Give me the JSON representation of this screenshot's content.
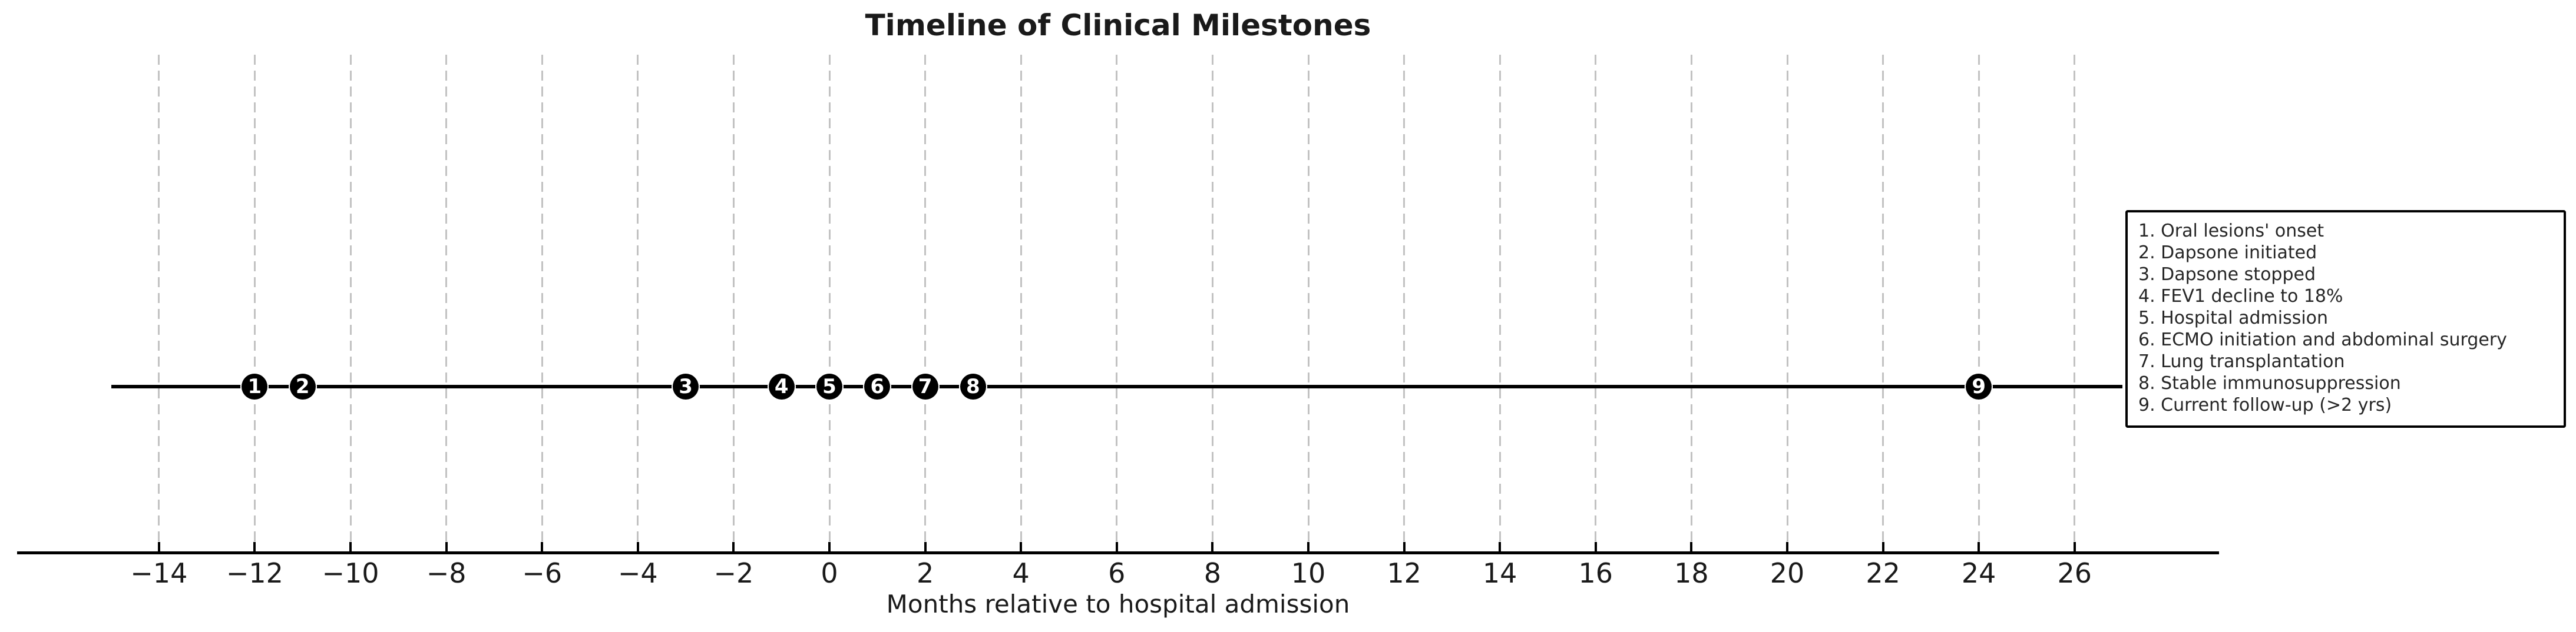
{
  "chart_data": {
    "type": "scatter",
    "title": "Timeline of Clinical Milestones",
    "xlabel": "Months relative to hospital admission",
    "x_ticks": [
      -14,
      -12,
      -10,
      -8,
      -6,
      -4,
      -2,
      0,
      2,
      4,
      6,
      8,
      10,
      12,
      14,
      16,
      18,
      20,
      22,
      24,
      26
    ],
    "xlim": [
      -17,
      29
    ],
    "grid": {
      "show": true,
      "orientation": "vertical",
      "style": "dashed"
    },
    "timeline_span_months": [
      -15,
      27
    ],
    "milestones": [
      {
        "n": 1,
        "month": -12,
        "label": "Oral lesions' onset"
      },
      {
        "n": 2,
        "month": -11,
        "label": "Dapsone initiated"
      },
      {
        "n": 3,
        "month": -3,
        "label": "Dapsone stopped"
      },
      {
        "n": 4,
        "month": -1,
        "label": "FEV1 decline to 18%"
      },
      {
        "n": 5,
        "month": 0,
        "label": "Hospital admission"
      },
      {
        "n": 6,
        "month": 1,
        "label": "ECMO initiation and abdominal surgery"
      },
      {
        "n": 7,
        "month": 2,
        "label": "Lung transplantation"
      },
      {
        "n": 8,
        "month": 3,
        "label": "Stable immunosuppression"
      },
      {
        "n": 9,
        "month": 24,
        "label": "Current follow-up (>2 yrs)"
      }
    ],
    "legend_position": "outside-right"
  },
  "colors": {
    "background": "#ffffff",
    "text": "#1a1a1a",
    "axis": "#000000",
    "grid": "#c2c2c2",
    "timeline": "#000000",
    "marker_fill": "#000000",
    "marker_text": "#ffffff",
    "legend_border": "#000000",
    "legend_bg": "#ffffff",
    "legend_text": "#262626"
  }
}
